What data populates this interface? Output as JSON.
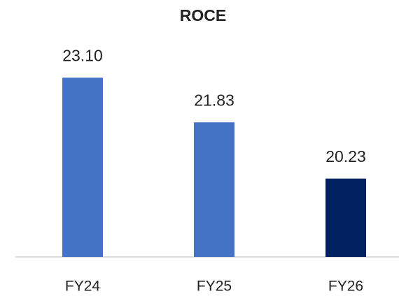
{
  "chart_data": {
    "type": "bar",
    "title": "ROCE",
    "categories": [
      "FY24",
      "FY25",
      "FY26"
    ],
    "values": [
      23.1,
      21.83,
      20.23
    ],
    "value_labels": [
      "23.10",
      "21.83",
      "20.23"
    ],
    "colors": [
      "#4472c4",
      "#4472c4",
      "#002060"
    ],
    "ylim": [
      18,
      24
    ]
  }
}
